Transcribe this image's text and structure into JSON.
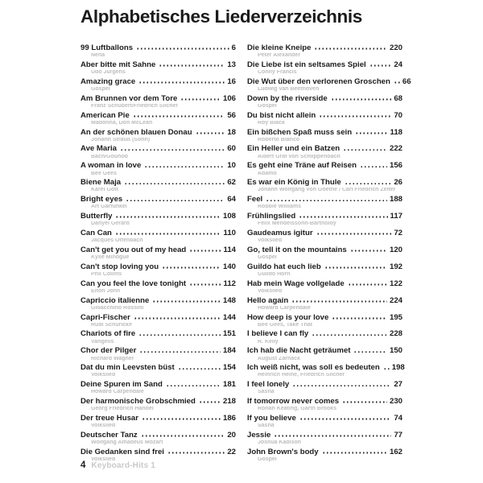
{
  "page_title": "Alphabetisches Liederverzeichnis",
  "footer": {
    "page_number": "4",
    "book_title": "Keyboard-Hits 1"
  },
  "columns": {
    "left": [
      {
        "title": "99 Luftballons",
        "artist": "Nena",
        "page": "6"
      },
      {
        "title": "Aber bitte mit Sahne",
        "artist": "Udo Jürgens",
        "page": "13"
      },
      {
        "title": "Amazing grace",
        "artist": "Gospel",
        "page": "16"
      },
      {
        "title": "Am Brunnen vor dem Tore",
        "artist": "Franz Schubert/Friedrich Silcher",
        "page": "106"
      },
      {
        "title": "American Pie",
        "artist": "Madonna, Don McLean",
        "page": "56"
      },
      {
        "title": "An der schönen blauen Donau",
        "artist": "Johann Strauß (Sohn)",
        "page": "18"
      },
      {
        "title": "Ave Maria",
        "artist": "Bach/Gounod",
        "page": "60"
      },
      {
        "title": "A woman in love",
        "artist": "Bee Gees",
        "page": "10"
      },
      {
        "title": "Biene Maja",
        "artist": "Karel Gott",
        "page": "62"
      },
      {
        "title": "Bright eyes",
        "artist": "Art Garfunkel",
        "page": "64"
      },
      {
        "title": "Butterfly",
        "artist": "Danyel Gérard",
        "page": "108"
      },
      {
        "title": "Can Can",
        "artist": "Jacques Offenbach",
        "page": "110"
      },
      {
        "title": "Can't get you out of my head",
        "artist": "Kylie Minogue",
        "page": "114"
      },
      {
        "title": "Can't stop loving you",
        "artist": "Phil Collins",
        "page": "140"
      },
      {
        "title": "Can you feel the love tonight",
        "artist": "Elton John",
        "page": "112"
      },
      {
        "title": "Capriccio italienne",
        "artist": "Gioacchino Rossini",
        "page": "148"
      },
      {
        "title": "Capri-Fischer",
        "artist": "Rudi Schuricke",
        "page": "144"
      },
      {
        "title": "Chariots of fire",
        "artist": "Vangelis",
        "page": "151"
      },
      {
        "title": "Chor der Pilger",
        "artist": "Richard Wagner",
        "page": "184"
      },
      {
        "title": "Dat du min Leevsten büst",
        "artist": "Volkslied",
        "page": "154"
      },
      {
        "title": "Deine Spuren im Sand",
        "artist": "Howard Carpendale",
        "page": "181"
      },
      {
        "title": "Der harmonische Grobschmied",
        "artist": "Georg Friedrich Händel",
        "page": "218"
      },
      {
        "title": "Der treue Husar",
        "artist": "Volkslied",
        "page": "186"
      },
      {
        "title": "Deutscher Tanz",
        "artist": "Wolfgang Amadeus Mozart",
        "page": "20"
      },
      {
        "title": "Die Gedanken sind frei",
        "artist": "Volkslied",
        "page": "22"
      }
    ],
    "right": [
      {
        "title": "Die kleine Kneipe",
        "artist": "Peter Alexander",
        "page": "220"
      },
      {
        "title": "Die Liebe ist ein seltsames Spiel",
        "artist": "Conny Francis",
        "page": "24"
      },
      {
        "title": "Die Wut über den verlorenen Groschen",
        "artist": "Ludwig van Beethoven",
        "page": "66"
      },
      {
        "title": "Down by the riverside",
        "artist": "Gospel",
        "page": "68"
      },
      {
        "title": "Du bist nicht allein",
        "artist": "Roy Black",
        "page": "70"
      },
      {
        "title": "Ein bißchen Spaß muss sein",
        "artist": "Roberto Blanco",
        "page": "118"
      },
      {
        "title": "Ein Heller und ein Batzen",
        "artist": "Albert Graf von Schlippenbach",
        "page": "222"
      },
      {
        "title": "Es geht eine Träne auf Reisen",
        "artist": "Adamo",
        "page": "156"
      },
      {
        "title": "Es war ein König in Thule",
        "artist": "Johann Wolfgang von Goethe / Carl Friedrich Zelter",
        "page": "26"
      },
      {
        "title": "Feel",
        "artist": "Robbie Williams",
        "page": "188"
      },
      {
        "title": "Frühlingslied",
        "artist": "Felix Mendelssohn-Bartholdy",
        "page": "117"
      },
      {
        "title": "Gaudeamus igitur",
        "artist": "Volkslied",
        "page": "72"
      },
      {
        "title": "Go, tell it on the mountains",
        "artist": "Gospel",
        "page": "120"
      },
      {
        "title": "Guildo hat euch lieb",
        "artist": "Guildo Horn",
        "page": "192"
      },
      {
        "title": "Hab mein Wage vollgelade",
        "artist": "Volkslied",
        "page": "122"
      },
      {
        "title": "Hello again",
        "artist": "Howard Carpendale",
        "page": "224"
      },
      {
        "title": "How deep is your love",
        "artist": "Bee Gees, Take That",
        "page": "195"
      },
      {
        "title": "I believe I can fly",
        "artist": "R. Kelly",
        "page": "228"
      },
      {
        "title": "Ich hab die Nacht geträumet",
        "artist": "August Zarnack",
        "page": "150"
      },
      {
        "title": "Ich weiß nicht, was soll es bedeuten",
        "artist": "Heinrich Heine, Friedrich Silcher",
        "page": "198"
      },
      {
        "title": "I feel lonely",
        "artist": "Sasha",
        "page": "27"
      },
      {
        "title": "If tomorrow never comes",
        "artist": "Ronan Keating, Garth Brooks",
        "page": "230"
      },
      {
        "title": "If you believe",
        "artist": "Sasha",
        "page": "74"
      },
      {
        "title": "Jessie",
        "artist": "Joshua Kadison",
        "page": "77"
      },
      {
        "title": "John Brown's body",
        "artist": "Gospel",
        "page": "162"
      }
    ]
  }
}
